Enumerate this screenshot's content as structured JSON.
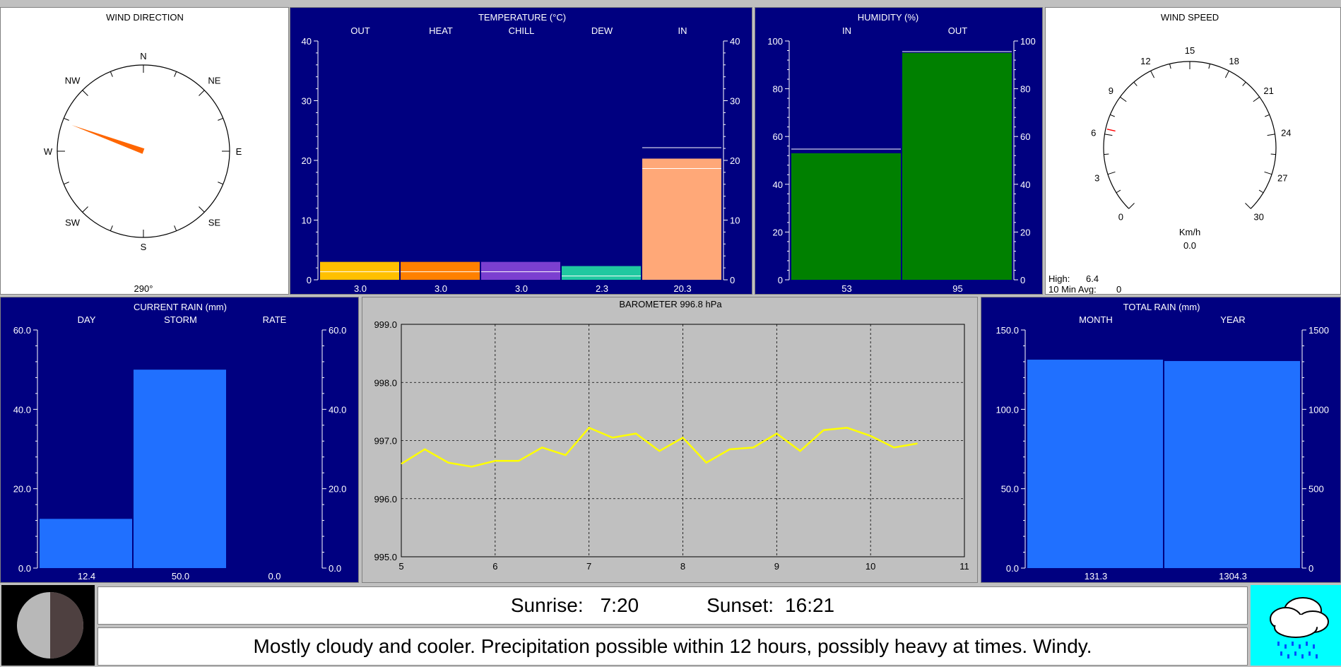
{
  "wind_direction": {
    "title": "WIND DIRECTION",
    "cardinals": [
      "N",
      "NE",
      "E",
      "SE",
      "S",
      "SW",
      "W",
      "NW"
    ],
    "degrees_label": "290°",
    "direction_deg": 290,
    "needle_color": "#ff6600"
  },
  "temperature": {
    "title": "TEMPERATURE  (°C)",
    "ticks": [
      "0",
      "10",
      "20",
      "30",
      "40"
    ],
    "ylim": [
      0,
      40
    ],
    "bars": [
      {
        "label": "OUT",
        "value": 3.0,
        "value_label": "3.0",
        "color": "#ffc000"
      },
      {
        "label": "HEAT",
        "value": 3.0,
        "value_label": "3.0",
        "color": "#ff8000"
      },
      {
        "label": "CHILL",
        "value": 3.0,
        "value_label": "3.0",
        "color": "#7b3fd0"
      },
      {
        "label": "DEW",
        "value": 2.3,
        "value_label": "2.3",
        "color": "#20c8a0"
      },
      {
        "label": "IN",
        "value": 20.3,
        "value_label": "20.3",
        "color": "#ffa878"
      }
    ]
  },
  "humidity": {
    "title": "HUMIDITY  (%)",
    "ticks": [
      "0",
      "20",
      "40",
      "60",
      "80",
      "100"
    ],
    "ylim": [
      0,
      100
    ],
    "bars": [
      {
        "label": "IN",
        "value": 53,
        "value_label": "53",
        "color": "#008000"
      },
      {
        "label": "OUT",
        "value": 95,
        "value_label": "95",
        "color": "#008000"
      }
    ]
  },
  "wind_speed": {
    "title": "WIND SPEED",
    "ticks": [
      "0",
      "3",
      "6",
      "9",
      "12",
      "15",
      "18",
      "21",
      "24",
      "27",
      "30"
    ],
    "max": 30,
    "value": 0.0,
    "unit": "Km/h",
    "value_label": "0.0",
    "high_label": "High:",
    "high_value": "6.4",
    "avg_label": "10 Min Avg:",
    "avg_value": "0",
    "high_mark": 6.4
  },
  "current_rain": {
    "title": "CURRENT RAIN  (mm)",
    "ticks": [
      "0.0",
      "20.0",
      "40.0",
      "60.0"
    ],
    "ylim": [
      0,
      60
    ],
    "bars": [
      {
        "label": "DAY",
        "value": 12.4,
        "value_label": "12.4",
        "color": "#2070ff"
      },
      {
        "label": "STORM",
        "value": 50.0,
        "value_label": "50.0",
        "color": "#2070ff"
      },
      {
        "label": "RATE",
        "value": 0.0,
        "value_label": "0.0",
        "color": "#2070ff"
      }
    ]
  },
  "barometer": {
    "title": "BAROMETER  996.8 hPa",
    "y_ticks": [
      "995.0",
      "996.0",
      "997.0",
      "998.0",
      "999.0"
    ],
    "x_ticks": [
      "5",
      "6",
      "7",
      "8",
      "9",
      "10",
      "11"
    ],
    "ylim": [
      995,
      999
    ],
    "xlim": [
      5,
      11
    ],
    "line_color": "#ffff00"
  },
  "chart_data": [
    {
      "type": "line",
      "title": "BAROMETER  996.8 hPa",
      "x": [
        5.0,
        5.25,
        5.5,
        5.75,
        6.0,
        6.25,
        6.5,
        6.75,
        7.0,
        7.25,
        7.5,
        7.75,
        8.0,
        8.25,
        8.5,
        8.75,
        9.0,
        9.25,
        9.5,
        9.75,
        10.0,
        10.25,
        10.5
      ],
      "y": [
        996.6,
        996.85,
        996.62,
        996.55,
        996.65,
        996.65,
        996.88,
        996.75,
        997.22,
        997.05,
        997.12,
        996.82,
        997.05,
        996.62,
        996.85,
        996.88,
        997.12,
        996.82,
        997.18,
        997.22,
        997.08,
        996.88,
        996.95
      ],
      "xlim": [
        5,
        11
      ],
      "ylim": [
        995,
        999
      ],
      "grid": true
    },
    {
      "type": "bar",
      "title": "TOTAL RAIN  (mm)",
      "categories": [
        "MONTH",
        "YEAR"
      ],
      "values": [
        131.3,
        1304.3
      ]
    }
  ],
  "total_rain": {
    "title": "TOTAL RAIN  (mm)",
    "left_ticks": [
      "0.0",
      "50.0",
      "100.0",
      "150.0"
    ],
    "right_ticks": [
      "0",
      "500",
      "1000",
      "1500"
    ],
    "bars": [
      {
        "label": "MONTH",
        "value": 131.3,
        "max": 150,
        "value_label": "131.3",
        "color": "#2070ff"
      },
      {
        "label": "YEAR",
        "value": 1304.3,
        "max": 1500,
        "value_label": "1304.3",
        "color": "#2070ff"
      }
    ]
  },
  "footer": {
    "sunrise_label": "Sunrise:",
    "sunrise_time": "7:20",
    "sunset_label": "Sunset:",
    "sunset_time": "16:21",
    "forecast": "Mostly cloudy and cooler.  Precipitation possible within 12 hours, possibly heavy at times.  Windy.",
    "moon_phase_icon": "half-moon-icon",
    "forecast_icon": "rain-cloud-icon"
  }
}
